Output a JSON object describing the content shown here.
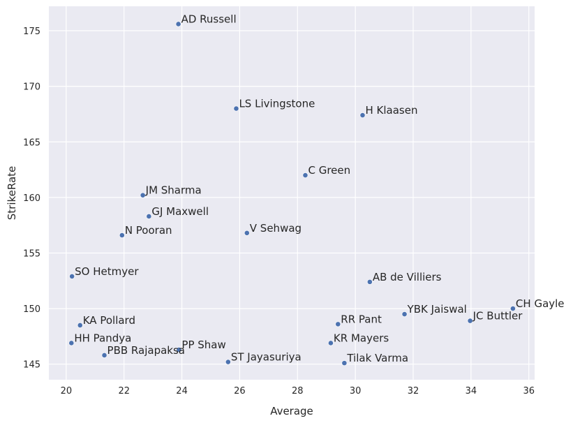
{
  "chart_data": {
    "type": "scatter",
    "title": "",
    "xlabel": "Average",
    "ylabel": "StrikeRate",
    "xlim": [
      19.4,
      36.2
    ],
    "ylim": [
      143.6,
      177.2
    ],
    "xticks": [
      20,
      22,
      24,
      26,
      28,
      30,
      32,
      34,
      36
    ],
    "yticks": [
      145,
      150,
      155,
      160,
      165,
      170,
      175
    ],
    "grid": true,
    "colors": {
      "background": "#eaeaf2",
      "grid": "#ffffff",
      "point": "#4c72b0",
      "text": "#262626"
    },
    "points": [
      {
        "label": "AD Russell",
        "x": 23.88,
        "y": 175.6
      },
      {
        "label": "LS Livingstone",
        "x": 25.88,
        "y": 168.0
      },
      {
        "label": "H Klaasen",
        "x": 30.25,
        "y": 167.4
      },
      {
        "label": "C Green",
        "x": 28.27,
        "y": 162.0
      },
      {
        "label": "JM Sharma",
        "x": 22.65,
        "y": 160.2
      },
      {
        "label": "GJ Maxwell",
        "x": 22.86,
        "y": 158.3
      },
      {
        "label": "V Sehwag",
        "x": 26.25,
        "y": 156.8
      },
      {
        "label": "N Pooran",
        "x": 21.93,
        "y": 156.6
      },
      {
        "label": "SO Hetmyer",
        "x": 20.2,
        "y": 152.9
      },
      {
        "label": "AB de Villiers",
        "x": 30.5,
        "y": 152.4
      },
      {
        "label": "CH Gayle",
        "x": 35.45,
        "y": 150.0
      },
      {
        "label": "YBK Jaiswal",
        "x": 31.7,
        "y": 149.5
      },
      {
        "label": "JC Buttler",
        "x": 33.97,
        "y": 148.9
      },
      {
        "label": "RR Pant",
        "x": 29.4,
        "y": 148.6
      },
      {
        "label": "KA Pollard",
        "x": 20.48,
        "y": 148.5
      },
      {
        "label": "HH Pandya",
        "x": 20.18,
        "y": 146.9
      },
      {
        "label": "KR Mayers",
        "x": 29.15,
        "y": 146.9
      },
      {
        "label": "PP Shaw",
        "x": 23.9,
        "y": 146.3
      },
      {
        "label": "PBB Rajapaksa",
        "x": 21.32,
        "y": 145.8
      },
      {
        "label": "ST Jayasuriya",
        "x": 25.6,
        "y": 145.2
      },
      {
        "label": "Tilak Varma",
        "x": 29.62,
        "y": 145.1
      }
    ]
  }
}
